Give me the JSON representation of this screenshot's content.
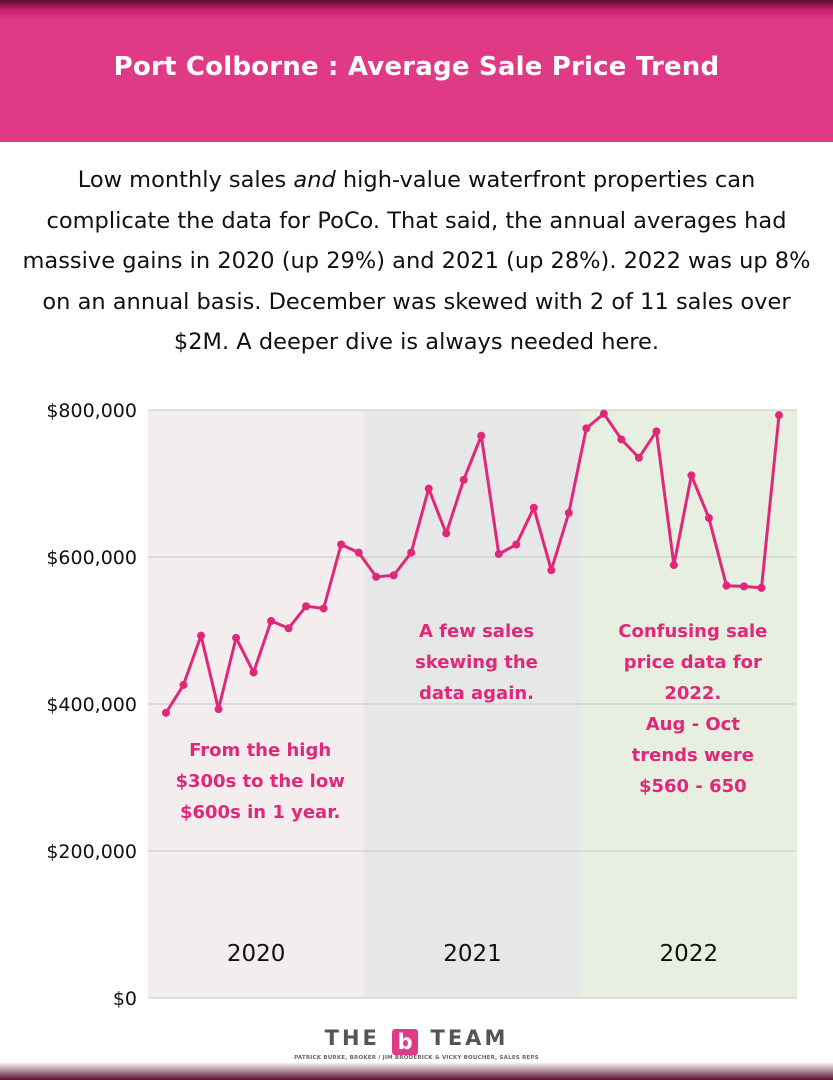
{
  "header": {
    "title": "Port Colborne : Average Sale Price Trend"
  },
  "intro": {
    "part1": "Low monthly sales ",
    "emphasis": "and",
    "part2": " high-value waterfront properties can complicate the data for PoCo. That said, the annual averages had massive gains in 2020 (up 29%) and 2021 (up 28%). 2022 was up 8% on an annual basis. December was skewed with 2 of 11 sales over $2M. A deeper dive is always needed here."
  },
  "chart_data": {
    "type": "line",
    "ylim": [
      0,
      800000
    ],
    "y_ticks": [
      {
        "value": 0,
        "label": "$0"
      },
      {
        "value": 200000,
        "label": "$200,000"
      },
      {
        "value": 400000,
        "label": "$400,000"
      },
      {
        "value": 600000,
        "label": "$600,000"
      },
      {
        "value": 800000,
        "label": "$800,000"
      }
    ],
    "grid": true,
    "series_color": "#e0287a",
    "years": [
      {
        "label": "2020",
        "color": "#f3edee"
      },
      {
        "label": "2021",
        "color": "#e6e8e8"
      },
      {
        "label": "2022",
        "color": "#e6efe0"
      }
    ],
    "values": [
      388000,
      426000,
      493000,
      393000,
      490000,
      443000,
      513000,
      503000,
      533000,
      530000,
      617000,
      606000,
      573000,
      575000,
      606000,
      693000,
      632000,
      705000,
      765000,
      604000,
      617000,
      667000,
      582000,
      660000,
      775000,
      795000,
      760000,
      735000,
      771000,
      589000,
      711000,
      653000,
      561000,
      560000,
      558000,
      793000
    ],
    "annotations": [
      {
        "year_index": 0,
        "lines": [
          "From the high",
          "$300s to the low",
          "$600s in 1 year."
        ]
      },
      {
        "year_index": 1,
        "lines": [
          "A few sales",
          "skewing the",
          "data again."
        ]
      },
      {
        "year_index": 2,
        "lines": [
          "Confusing sale",
          "price data for",
          "2022.",
          "Aug - Oct",
          "trends were",
          "$560 - 650"
        ]
      }
    ]
  },
  "footer": {
    "brand_left": "THE",
    "brand_logo": "b",
    "brand_right": "TEAM",
    "credits": "PATRICK BURKE, BROKER / JIM BRODERICK & VICKY BOUCHER, SALES REPS"
  }
}
